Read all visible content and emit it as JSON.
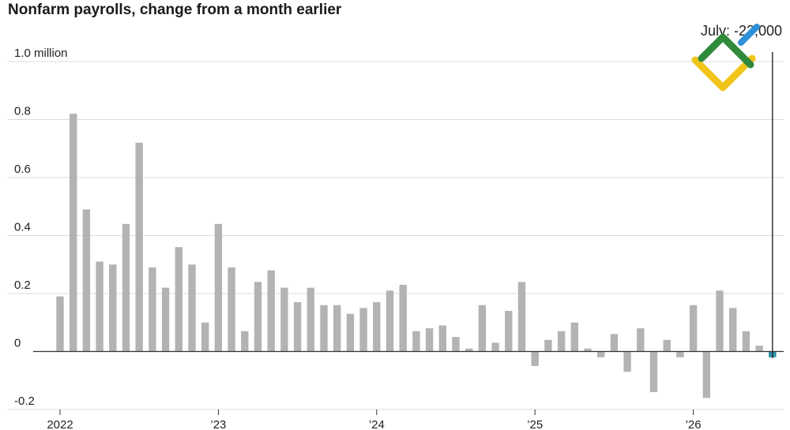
{
  "chart_data": {
    "type": "bar",
    "title": "Nonfarm payrolls, change from a month earlier",
    "unit": "million",
    "ylim": [
      -0.2,
      1.0
    ],
    "y_ticks": [
      {
        "value": 1.0,
        "label": "1.0 million"
      },
      {
        "value": 0.8,
        "label": "0.8"
      },
      {
        "value": 0.6,
        "label": "0.6"
      },
      {
        "value": 0.4,
        "label": "0.4"
      },
      {
        "value": 0.2,
        "label": "0.2"
      },
      {
        "value": 0,
        "label": "0"
      },
      {
        "value": -0.2,
        "label": "-0.2"
      }
    ],
    "x_ticks": [
      {
        "label": "2022",
        "month_index": 0
      },
      {
        "label": "’23",
        "month_index": 12
      },
      {
        "label": "’24",
        "month_index": 24
      },
      {
        "label": "’25",
        "month_index": 36
      },
      {
        "label": "’26",
        "month_index": 48
      }
    ],
    "grid": true,
    "values": [
      0.19,
      0.82,
      0.49,
      0.31,
      0.3,
      0.44,
      0.72,
      0.29,
      0.22,
      0.36,
      0.3,
      0.1,
      0.44,
      0.29,
      0.07,
      0.24,
      0.28,
      0.22,
      0.17,
      0.22,
      0.16,
      0.16,
      0.13,
      0.15,
      0.17,
      0.21,
      0.23,
      0.07,
      0.08,
      0.09,
      0.05,
      0.01,
      0.16,
      0.03,
      0.14,
      0.24,
      -0.05,
      0.04,
      0.07,
      0.1,
      0.01,
      -0.02,
      0.06,
      -0.07,
      0.08,
      -0.14,
      0.04,
      -0.02,
      0.16,
      -0.16,
      0.21,
      0.15,
      0.07,
      0.02,
      -0.02
    ],
    "highlight": {
      "index": 54,
      "color": "#2a8fa8"
    },
    "bar_color": "#b3b3b3",
    "callout": {
      "text": "July: -23,000",
      "value": -0.023
    }
  }
}
